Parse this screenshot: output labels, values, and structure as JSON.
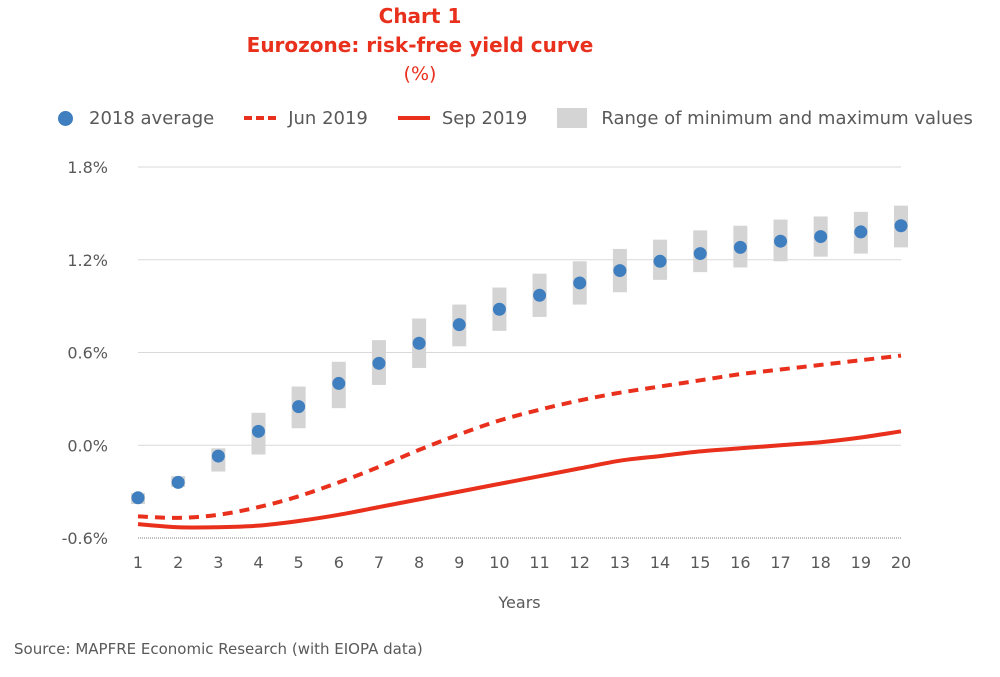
{
  "chart_data": {
    "type": "line",
    "title": "Chart 1",
    "subtitle": "Eurozone: risk-free yield curve",
    "unit": "(%)",
    "xlabel": "Years",
    "ylabel": "",
    "x": [
      1,
      2,
      3,
      4,
      5,
      6,
      7,
      8,
      9,
      10,
      11,
      12,
      13,
      14,
      15,
      16,
      17,
      18,
      19,
      20
    ],
    "ylim": [
      -0.6,
      1.8
    ],
    "yticks": [
      -0.6,
      0.0,
      0.6,
      1.2,
      1.8
    ],
    "ytick_labels": [
      "-0.6%",
      "0.0%",
      "0.6%",
      "1.2%",
      "1.8%"
    ],
    "grid": true,
    "legend_position": "top",
    "series": [
      {
        "name": "2018 average",
        "style": "dots",
        "color": "#3f7ebf",
        "values": [
          -0.34,
          -0.24,
          -0.07,
          0.09,
          0.25,
          0.4,
          0.53,
          0.66,
          0.78,
          0.88,
          0.97,
          1.05,
          1.13,
          1.19,
          1.24,
          1.28,
          1.32,
          1.35,
          1.38,
          1.42
        ]
      },
      {
        "name": "Jun 2019",
        "style": "dashed",
        "color": "#e8301c",
        "values": [
          -0.46,
          -0.47,
          -0.45,
          -0.4,
          -0.33,
          -0.24,
          -0.14,
          -0.03,
          0.07,
          0.16,
          0.23,
          0.29,
          0.34,
          0.38,
          0.42,
          0.46,
          0.49,
          0.52,
          0.55,
          0.58
        ]
      },
      {
        "name": "Sep 2019",
        "style": "solid",
        "color": "#e8301c",
        "values": [
          -0.51,
          -0.53,
          -0.53,
          -0.52,
          -0.49,
          -0.45,
          -0.4,
          -0.35,
          -0.3,
          -0.25,
          -0.2,
          -0.15,
          -0.1,
          -0.07,
          -0.04,
          -0.02,
          0.0,
          0.02,
          0.05,
          0.09
        ]
      }
    ],
    "range": {
      "name": "Range of minimum and maximum values",
      "color": "#d4d4d4",
      "min": [
        -0.38,
        -0.27,
        -0.17,
        -0.06,
        0.11,
        0.24,
        0.39,
        0.5,
        0.64,
        0.74,
        0.83,
        0.91,
        0.99,
        1.07,
        1.12,
        1.15,
        1.19,
        1.22,
        1.24,
        1.28
      ],
      "max": [
        -0.31,
        -0.2,
        -0.02,
        0.21,
        0.38,
        0.54,
        0.68,
        0.82,
        0.91,
        1.02,
        1.11,
        1.19,
        1.27,
        1.33,
        1.39,
        1.42,
        1.46,
        1.48,
        1.51,
        1.55
      ]
    }
  },
  "source": "Source: MAPFRE Economic Research (with EIOPA data)"
}
